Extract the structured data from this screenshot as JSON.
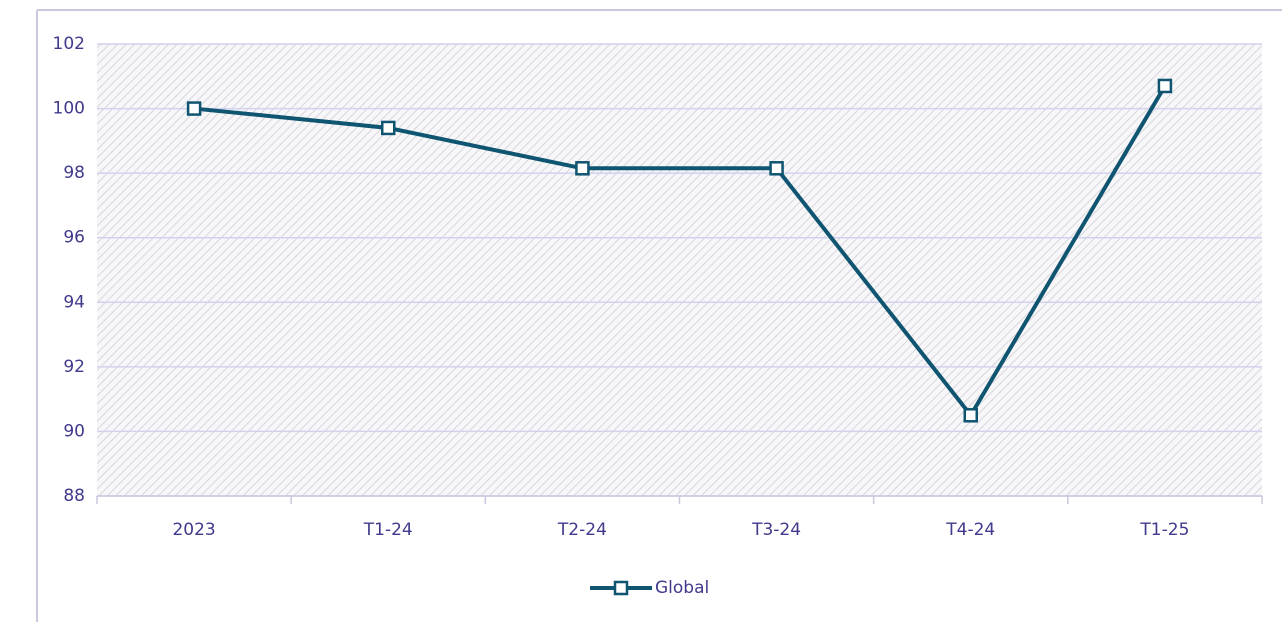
{
  "chart_data": {
    "type": "line",
    "categories": [
      "2023",
      "T1-24",
      "T2-24",
      "T3-24",
      "T4-24",
      "T1-25"
    ],
    "series": [
      {
        "name": "Global",
        "color": "#0f5470",
        "values": [
          100,
          99.4,
          98.15,
          98.15,
          90.5,
          100.7
        ]
      }
    ],
    "ylim": [
      88,
      102
    ],
    "yticks": [
      88,
      90,
      92,
      94,
      96,
      98,
      100,
      102
    ],
    "grid": true,
    "legend": "bottom"
  }
}
